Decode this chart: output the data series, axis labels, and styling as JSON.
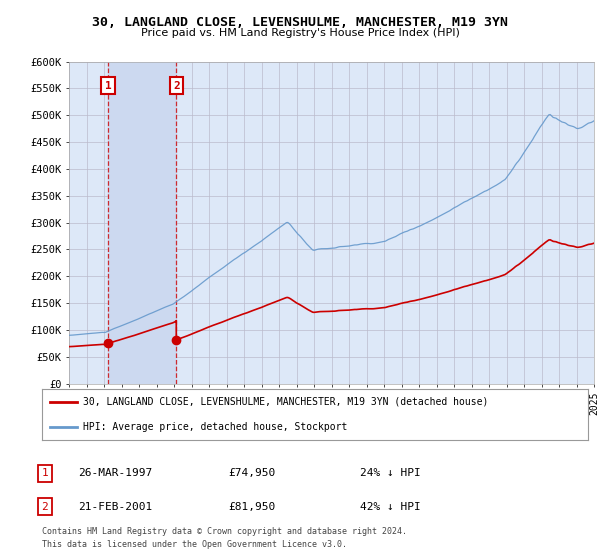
{
  "title": "30, LANGLAND CLOSE, LEVENSHULME, MANCHESTER, M19 3YN",
  "subtitle": "Price paid vs. HM Land Registry's House Price Index (HPI)",
  "property_label": "30, LANGLAND CLOSE, LEVENSHULME, MANCHESTER, M19 3YN (detached house)",
  "hpi_label": "HPI: Average price, detached house, Stockport",
  "footer1": "Contains HM Land Registry data © Crown copyright and database right 2024.",
  "footer2": "This data is licensed under the Open Government Licence v3.0.",
  "sale1_date": "26-MAR-1997",
  "sale1_price": 74950,
  "sale1_pct": "24% ↓ HPI",
  "sale1_year": 1997.23,
  "sale2_date": "21-FEB-2001",
  "sale2_price": 81950,
  "sale2_pct": "42% ↓ HPI",
  "sale2_year": 2001.13,
  "xmin": 1995,
  "xmax": 2025,
  "ymin": 0,
  "ymax": 600000,
  "yticks": [
    0,
    50000,
    100000,
    150000,
    200000,
    250000,
    300000,
    350000,
    400000,
    450000,
    500000,
    550000,
    600000
  ],
  "property_color": "#cc0000",
  "hpi_color": "#6699cc",
  "annotation_color": "#cc0000",
  "bg_color": "#dde8f8",
  "plot_bg": "#ffffff",
  "grid_color": "#bbbbcc",
  "shade_color": "#ccd9f0"
}
